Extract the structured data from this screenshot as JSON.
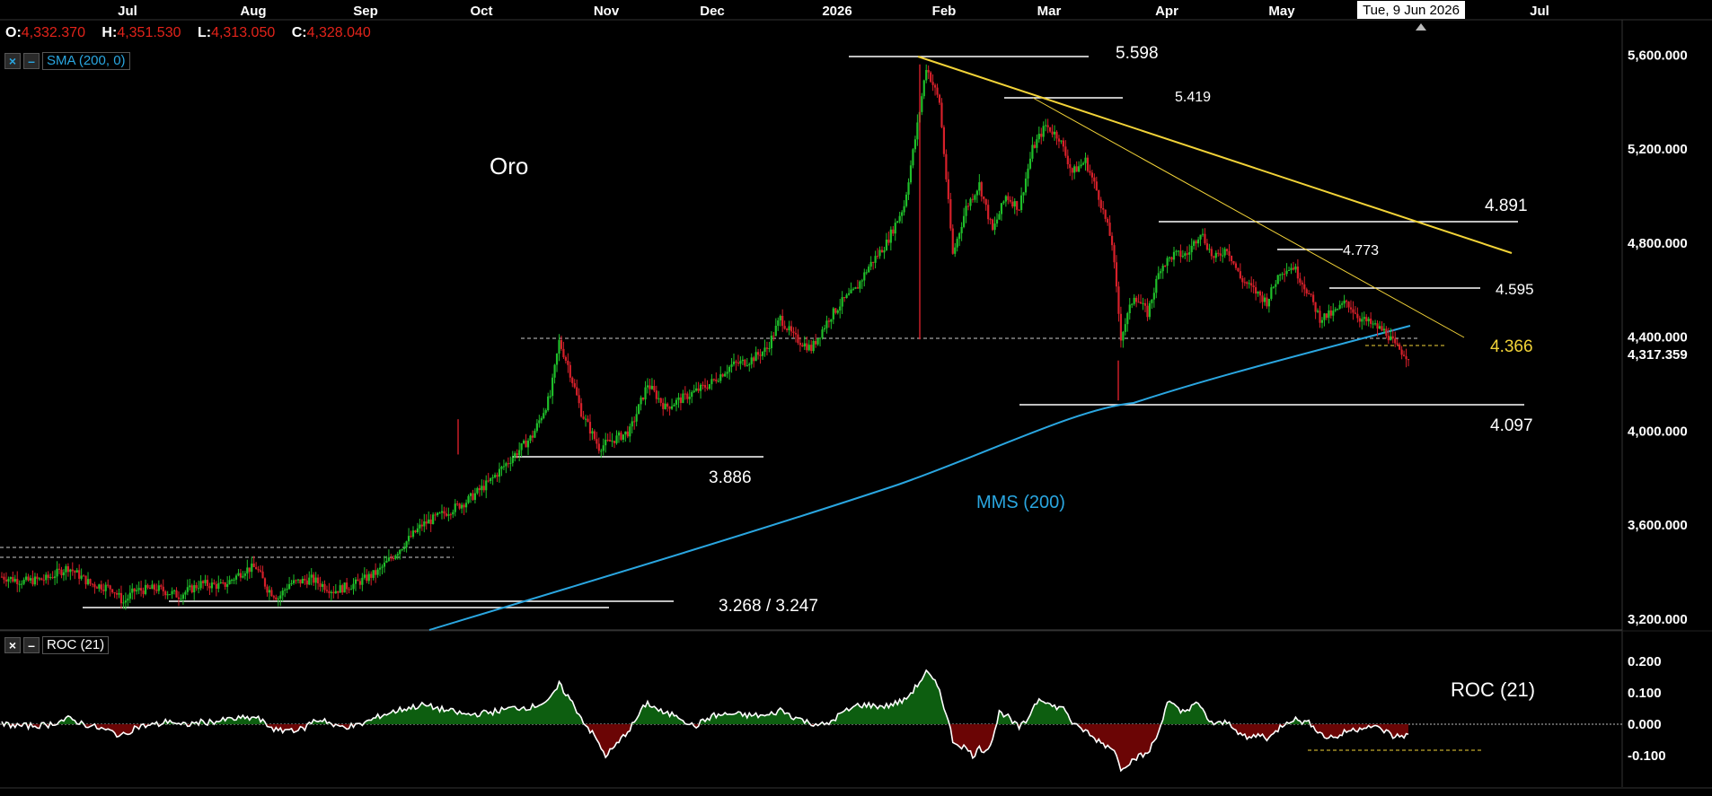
{
  "ohlc": {
    "o_label": "O:",
    "o": "4,332.370",
    "h_label": "H:",
    "h": "4,351.530",
    "l_label": "L:",
    "l": "4,313.050",
    "c_label": "C:",
    "c": "4,328.040"
  },
  "indicators": {
    "sma_label": "SMA (200, 0)",
    "roc_label": "ROC (21)",
    "close_btn": "×",
    "min_btn": "–"
  },
  "crosshair_date": "Tue, 9 Jun 2026",
  "last_price": "4,317.359",
  "colors": {
    "bg": "#000000",
    "up": "#1fbf2a",
    "down": "#d6202a",
    "sma": "#2aa6e0",
    "trend": "#f2d338",
    "roc_pos": "#0d5e10",
    "roc_neg": "#6b0505"
  },
  "chart_data": {
    "type": "candlestick",
    "x_ticks": [
      "Jul",
      "Aug",
      "Sep",
      "Oct",
      "Nov",
      "Dec",
      "2026",
      "Feb",
      "Mar",
      "Apr",
      "May",
      "Jul"
    ],
    "y_ticks": [
      "5,600.000",
      "5,200.000",
      "4,800.000",
      "4,400.000",
      "4,000.000",
      "3,600.000",
      "3,200.000"
    ],
    "y_tick_values": [
      5600,
      5200,
      4800,
      4400,
      4000,
      3600,
      3200
    ],
    "roc_ticks": [
      "0.200",
      "0.100",
      "0.000",
      "-0.100"
    ],
    "roc_tick_values": [
      0.2,
      0.1,
      0,
      -0.1
    ],
    "annotations": {
      "title": "Oro",
      "sma_name": "MMS (200)",
      "roc_name": "ROC (21)",
      "levels": [
        "5.598",
        "5.419",
        "4.891",
        "4.773",
        "4.595",
        "4.366",
        "4.097",
        "3.886",
        "3.268 / 3.247"
      ]
    },
    "close_path": [
      [
        0,
        3380
      ],
      [
        10,
        3360
      ],
      [
        20,
        3370
      ],
      [
        30,
        3420
      ],
      [
        40,
        3350
      ],
      [
        50,
        3330
      ],
      [
        55,
        3270
      ],
      [
        60,
        3320
      ],
      [
        70,
        3330
      ],
      [
        80,
        3300
      ],
      [
        90,
        3350
      ],
      [
        100,
        3340
      ],
      [
        110,
        3410
      ],
      [
        115,
        3420
      ],
      [
        120,
        3330
      ],
      [
        125,
        3290
      ],
      [
        130,
        3350
      ],
      [
        140,
        3370
      ],
      [
        150,
        3320
      ],
      [
        160,
        3350
      ],
      [
        170,
        3400
      ],
      [
        180,
        3500
      ],
      [
        190,
        3600
      ],
      [
        200,
        3650
      ],
      [
        210,
        3700
      ],
      [
        220,
        3780
      ],
      [
        230,
        3880
      ],
      [
        240,
        3980
      ],
      [
        248,
        4150
      ],
      [
        252,
        4380
      ],
      [
        256,
        4280
      ],
      [
        262,
        4080
      ],
      [
        270,
        3930
      ],
      [
        276,
        3960
      ],
      [
        284,
        4000
      ],
      [
        292,
        4200
      ],
      [
        300,
        4100
      ],
      [
        310,
        4150
      ],
      [
        320,
        4200
      ],
      [
        330,
        4280
      ],
      [
        338,
        4300
      ],
      [
        346,
        4350
      ],
      [
        352,
        4480
      ],
      [
        358,
        4400
      ],
      [
        366,
        4350
      ],
      [
        374,
        4480
      ],
      [
        380,
        4550
      ],
      [
        386,
        4600
      ],
      [
        392,
        4700
      ],
      [
        400,
        4800
      ],
      [
        408,
        4960
      ],
      [
        414,
        5300
      ],
      [
        418,
        5550
      ],
      [
        424,
        5400
      ],
      [
        430,
        4750
      ],
      [
        436,
        4950
      ],
      [
        442,
        5050
      ],
      [
        448,
        4850
      ],
      [
        454,
        5000
      ],
      [
        460,
        4950
      ],
      [
        466,
        5200
      ],
      [
        472,
        5300
      ],
      [
        478,
        5250
      ],
      [
        484,
        5100
      ],
      [
        490,
        5150
      ],
      [
        496,
        5000
      ],
      [
        502,
        4800
      ],
      [
        506,
        4400
      ],
      [
        512,
        4580
      ],
      [
        518,
        4500
      ],
      [
        524,
        4700
      ],
      [
        530,
        4750
      ],
      [
        536,
        4750
      ],
      [
        542,
        4850
      ],
      [
        548,
        4730
      ],
      [
        554,
        4780
      ],
      [
        560,
        4650
      ],
      [
        566,
        4600
      ],
      [
        572,
        4550
      ],
      [
        578,
        4680
      ],
      [
        584,
        4700
      ],
      [
        590,
        4600
      ],
      [
        596,
        4480
      ],
      [
        602,
        4500
      ],
      [
        608,
        4550
      ],
      [
        614,
        4480
      ],
      [
        620,
        4450
      ],
      [
        626,
        4420
      ],
      [
        630,
        4360
      ],
      [
        636,
        4317
      ]
    ]
  }
}
